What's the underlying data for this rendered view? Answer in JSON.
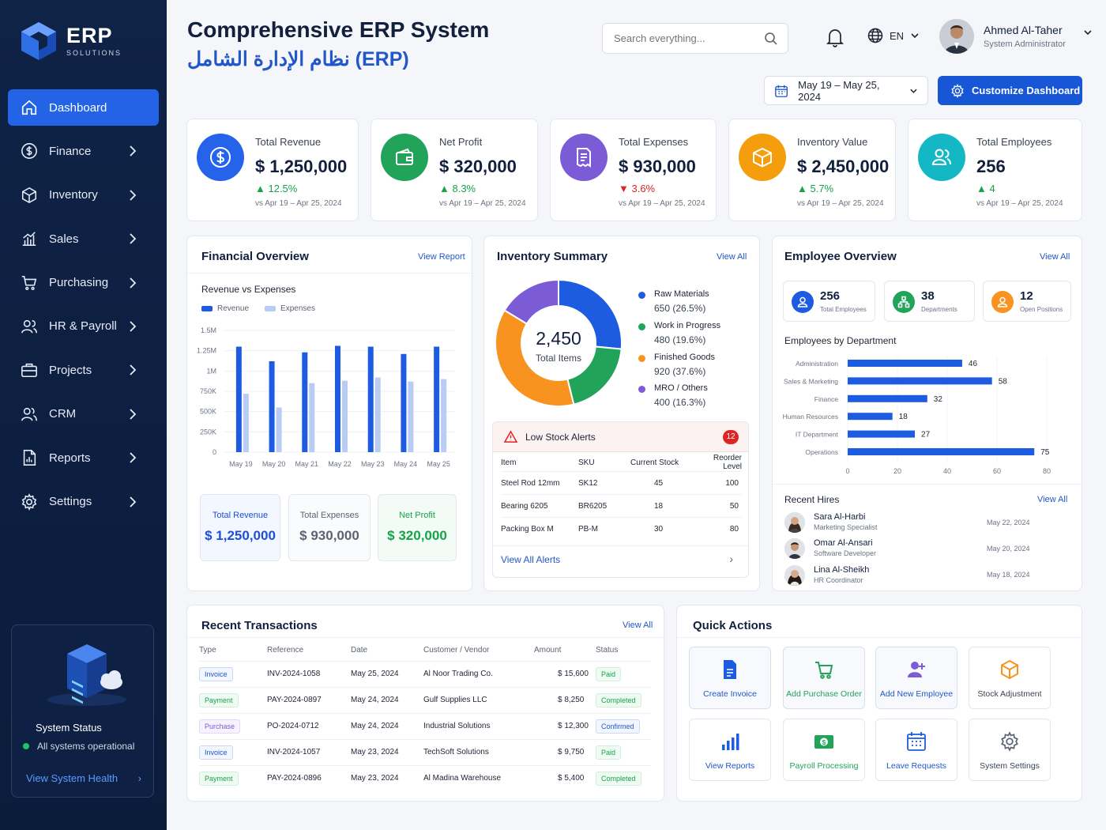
{
  "app": {
    "logo_title": "ERP",
    "logo_subtitle": "SOLUTIONS"
  },
  "sidebar": {
    "items": [
      {
        "label": "Dashboard",
        "icon": "home-icon",
        "active": true
      },
      {
        "label": "Finance",
        "icon": "dollar-icon"
      },
      {
        "label": "Inventory",
        "icon": "box-icon"
      },
      {
        "label": "Sales",
        "icon": "bar-chart-icon"
      },
      {
        "label": "Purchasing",
        "icon": "cart-icon"
      },
      {
        "label": "HR & Payroll",
        "icon": "users-icon"
      },
      {
        "label": "Projects",
        "icon": "briefcase-icon"
      },
      {
        "label": "CRM",
        "icon": "people-icon"
      },
      {
        "label": "Reports",
        "icon": "report-icon"
      },
      {
        "label": "Settings",
        "icon": "gear-icon"
      }
    ],
    "status": {
      "title": "System Status",
      "text": "All systems operational",
      "link": "View System Health"
    }
  },
  "header": {
    "title_en": "Comprehensive ERP System",
    "title_ar": "نظام الإدارة الشامل (ERP)",
    "search_placeholder": "Search everything...",
    "lang": "EN",
    "user_name": "Ahmed Al-Taher",
    "user_role": "System Administrator",
    "date_range": "May 19 – May 25, 2024",
    "customize_label": "Customize Dashboard"
  },
  "kpis": [
    {
      "label": "Total Revenue",
      "value": "$ 1,250,000",
      "change": "▲ 12.5%",
      "direction": "up",
      "compare": "vs Apr 19 – Apr 25, 2024",
      "color": "#2563eb",
      "icon": "dollar-icon"
    },
    {
      "label": "Net Profit",
      "value": "$ 320,000",
      "change": "▲ 8.3%",
      "direction": "up",
      "compare": "vs Apr 19 – Apr 25, 2024",
      "color": "#22a35a",
      "icon": "wallet-icon"
    },
    {
      "label": "Total Expenses",
      "value": "$ 930,000",
      "change": "▼ 3.6%",
      "direction": "down",
      "compare": "vs Apr 19 – Apr 25, 2024",
      "color": "#7c5cd6",
      "icon": "receipt-icon"
    },
    {
      "label": "Inventory Value",
      "value": "$ 2,450,000",
      "change": "▲ 5.7%",
      "direction": "up",
      "compare": "vs Apr 19 – Apr 25, 2024",
      "color": "#f59e0b",
      "icon": "box-icon"
    },
    {
      "label": "Total Employees",
      "value": "256",
      "change": "▲ 4",
      "direction": "up",
      "compare": "vs Apr 19 – Apr 25, 2024",
      "color": "#14b8c4",
      "icon": "users-icon"
    }
  ],
  "financial": {
    "title": "Financial Overview",
    "link": "View Report",
    "subtitle": "Revenue vs Expenses",
    "legend": [
      "Revenue",
      "Expenses"
    ],
    "y_ticks": [
      "1.5M",
      "1.25M",
      "1M",
      "750K",
      "500K",
      "250K",
      "0"
    ],
    "summary": [
      {
        "label": "Total Revenue",
        "value": "$ 1,250,000",
        "color": "#1d4ed8"
      },
      {
        "label": "Total Expenses",
        "value": "$ 930,000",
        "color": "#5b6373"
      },
      {
        "label": "Net Profit",
        "value": "$ 320,000",
        "color": "#16a34a"
      }
    ]
  },
  "chart_data": [
    {
      "type": "bar",
      "title": "Revenue vs Expenses",
      "categories": [
        "May 19",
        "May 20",
        "May 21",
        "May 22",
        "May 23",
        "May 24",
        "May 25"
      ],
      "series": [
        {
          "name": "Revenue",
          "values": [
            1300000,
            1120000,
            1230000,
            1310000,
            1300000,
            1210000,
            1300000
          ]
        },
        {
          "name": "Expenses",
          "values": [
            720000,
            550000,
            850000,
            880000,
            920000,
            870000,
            900000
          ]
        }
      ],
      "ylim": [
        0,
        1500000
      ],
      "colors": [
        "#1d5be0",
        "#b9ccf3"
      ],
      "grid": true,
      "legend": "top-left"
    },
    {
      "type": "pie",
      "title": "Inventory Summary",
      "center_value": "2,450",
      "center_label": "Total Items",
      "slices": [
        {
          "name": "Raw Materials",
          "value": 650,
          "pct": "(26.5%)",
          "color": "#1d5be0"
        },
        {
          "name": "Work in Progress",
          "value": 480,
          "pct": "(19.6%)",
          "color": "#22a35a"
        },
        {
          "name": "Finished Goods",
          "value": 920,
          "pct": "(37.6%)",
          "color": "#f7931e"
        },
        {
          "name": "MRO / Others",
          "value": 400,
          "pct": "(16.3%)",
          "color": "#7c5cd6"
        }
      ]
    },
    {
      "type": "bar",
      "orientation": "horizontal",
      "title": "Employees by Department",
      "categories": [
        "Administration",
        "Sales & Marketing",
        "Finance",
        "Human Resources",
        "IT Department",
        "Operations"
      ],
      "values": [
        46,
        58,
        32,
        18,
        27,
        75
      ],
      "xlim": [
        0,
        80
      ],
      "x_ticks": [
        "0",
        "20",
        "40",
        "60",
        "80"
      ],
      "color": "#1d5be0"
    }
  ],
  "inventory": {
    "title": "Inventory Summary",
    "link": "View All",
    "alerts": {
      "title": "Low Stock Alerts",
      "count": "12",
      "columns": [
        "Item",
        "SKU",
        "Current Stock",
        "Reorder Level"
      ],
      "rows": [
        [
          "Steel Rod 12mm",
          "SK12",
          "45",
          "100"
        ],
        [
          "Bearing 6205",
          "BR6205",
          "18",
          "50"
        ],
        [
          "Packing Box M",
          "PB-M",
          "30",
          "80"
        ]
      ],
      "footer": "View All Alerts"
    }
  },
  "employees": {
    "title": "Employee Overview",
    "link": "View All",
    "cards": [
      {
        "value": "256",
        "label": "Total Employees",
        "color": "#1d5be0"
      },
      {
        "value": "38",
        "label": "Departments",
        "color": "#22a35a"
      },
      {
        "value": "12",
        "label": "Open Positions",
        "color": "#f7931e"
      }
    ],
    "dept_title": "Employees by Department",
    "hires_title": "Recent Hires",
    "hires_link": "View All",
    "hires": [
      {
        "name": "Sara Al-Harbi",
        "role": "Marketing Specialist",
        "date": "May 22, 2024"
      },
      {
        "name": "Omar Al-Ansari",
        "role": "Software Developer",
        "date": "May 20, 2024"
      },
      {
        "name": "Lina Al-Sheikh",
        "role": "HR Coordinator",
        "date": "May 18, 2024"
      }
    ]
  },
  "transactions": {
    "title": "Recent Transactions",
    "link": "View All",
    "columns": [
      "Type",
      "Reference",
      "Date",
      "Customer / Vendor",
      "Amount",
      "Status"
    ],
    "rows": [
      {
        "type": "Invoice",
        "ref": "INV-2024-1058",
        "date": "May 25, 2024",
        "party": "Al Noor Trading Co.",
        "amount": "$ 15,600",
        "status": "Paid"
      },
      {
        "type": "Payment",
        "ref": "PAY-2024-0897",
        "date": "May 24, 2024",
        "party": "Gulf Supplies LLC",
        "amount": "$ 8,250",
        "status": "Completed"
      },
      {
        "type": "Purchase",
        "ref": "PO-2024-0712",
        "date": "May 24, 2024",
        "party": "Industrial Solutions",
        "amount": "$ 12,300",
        "status": "Confirmed"
      },
      {
        "type": "Invoice",
        "ref": "INV-2024-1057",
        "date": "May 23, 2024",
        "party": "TechSoft Solutions",
        "amount": "$ 9,750",
        "status": "Paid"
      },
      {
        "type": "Payment",
        "ref": "PAY-2024-0896",
        "date": "May 23, 2024",
        "party": "Al Madina Warehouse",
        "amount": "$ 5,400",
        "status": "Completed"
      }
    ]
  },
  "quick_actions": {
    "title": "Quick Actions",
    "items": [
      {
        "label": "Create Invoice",
        "icon": "document-icon",
        "color": "#1d5be0"
      },
      {
        "label": "Add Purchase Order",
        "icon": "cart-icon",
        "color": "#22a35a"
      },
      {
        "label": "Add New Employee",
        "icon": "add-user-icon",
        "color": "#7c5cd6"
      },
      {
        "label": "Stock Adjustment",
        "icon": "box-icon",
        "color": "#f7931e"
      },
      {
        "label": "View Reports",
        "icon": "bar-chart-icon",
        "color": "#1d5be0"
      },
      {
        "label": "Payroll Processing",
        "icon": "money-icon",
        "color": "#22a35a"
      },
      {
        "label": "Leave Requests",
        "icon": "calendar-icon",
        "color": "#1d5be0"
      },
      {
        "label": "System Settings",
        "icon": "gear-icon",
        "color": "#5b6373"
      }
    ]
  }
}
